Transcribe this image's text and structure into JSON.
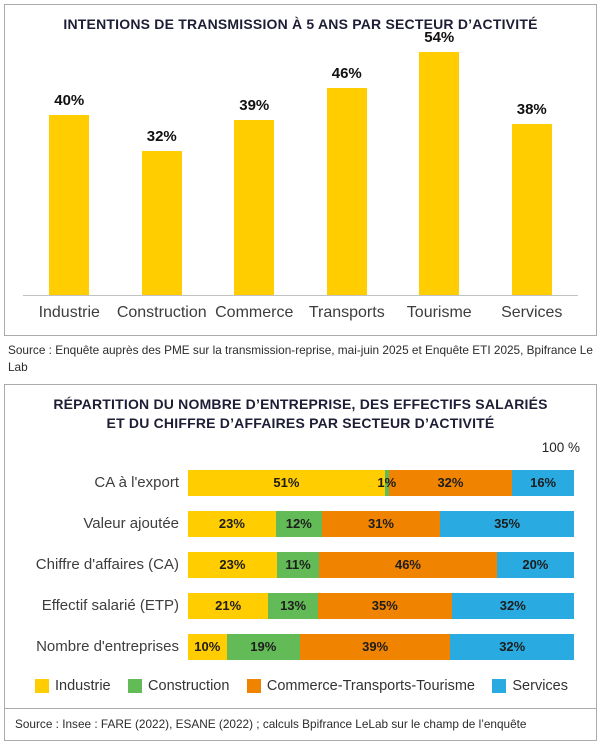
{
  "sources": {
    "chart1": "Source : Enquête auprès des PME sur la transmission-reprise, mai-juin 2025 et Enquête ETI 2025, Bpifrance Le Lab",
    "chart2": "Source : Insee : FARE (2022), ESANE (2022) ; calculs Bpifrance LeLab sur le champ de l’enquête"
  },
  "chart_data": [
    {
      "type": "bar",
      "title": "INTENTIONS DE TRANSMISSION À 5 ANS PAR SECTEUR D’ACTIVITÉ",
      "categories": [
        "Industrie",
        "Construction",
        "Commerce",
        "Transports",
        "Tourisme",
        "Services"
      ],
      "values": [
        40,
        32,
        39,
        46,
        54,
        38
      ],
      "value_suffix": "%",
      "bar_color": "#FFCD00",
      "ylim": [
        0,
        60
      ],
      "grid": false,
      "legend_position": "none"
    },
    {
      "type": "stacked-bar-horizontal-100pct",
      "title": "RÉPARTITION DU NOMBRE D’ENTREPRISE, DES EFFECTIFS SALARIÉS ET DU CHIFFRE D’AFFAIRES PAR SECTEUR D’ACTIVITÉ",
      "title_lines": [
        "RÉPARTITION DU NOMBRE D’ENTREPRISE, DES EFFECTIFS SALARIÉS",
        "ET DU CHIFFRE D’AFFAIRES PAR SECTEUR D’ACTIVITÉ"
      ],
      "axis_max_label": "100 %",
      "categories": [
        "CA à l'export",
        "Valeur ajoutée",
        "Chiffre d'affaires (CA)",
        "Effectif salarié (ETP)",
        "Nombre d'entreprises"
      ],
      "series": [
        {
          "name": "Industrie",
          "color": "#FFCD00",
          "values": [
            51,
            23,
            23,
            21,
            10
          ]
        },
        {
          "name": "Construction",
          "color": "#62BB57",
          "values": [
            1,
            12,
            11,
            13,
            19
          ]
        },
        {
          "name": "Commerce-Transports-Tourisme",
          "color": "#F08300",
          "values": [
            32,
            31,
            46,
            35,
            39
          ]
        },
        {
          "name": "Services",
          "color": "#29ABE2",
          "values": [
            16,
            35,
            20,
            32,
            32
          ]
        }
      ],
      "value_suffix": "%",
      "legend_position": "bottom"
    }
  ]
}
